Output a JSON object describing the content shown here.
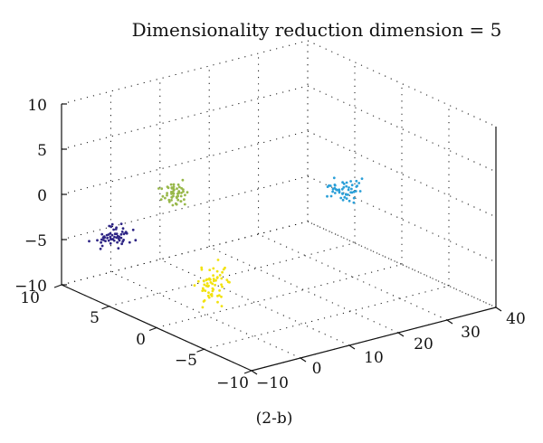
{
  "chart_data": {
    "type": "scatter3d",
    "title": "Dimensionality reduction dimension = 5",
    "caption": "(2-b)",
    "grid": true,
    "axes": {
      "x": {
        "ticks": [
          "−10",
          "0",
          "10",
          "20",
          "30",
          "40"
        ],
        "range": [
          -10,
          40
        ]
      },
      "y": {
        "ticks": [
          "−10",
          "−5",
          "0",
          "5",
          "10"
        ],
        "range": [
          -10,
          10
        ]
      },
      "z": {
        "ticks": [
          "−10",
          "−5",
          "0",
          "5",
          "10"
        ],
        "range": [
          -10,
          10
        ]
      }
    },
    "clusters": [
      {
        "color": "#2e2585",
        "center_screen_hint": "left",
        "count": 55
      },
      {
        "color": "#98b84a",
        "center_screen_hint": "upper-left",
        "count": 55
      },
      {
        "color": "#2a9fd8",
        "center_screen_hint": "right",
        "count": 50
      },
      {
        "color": "#f2e20f",
        "center_screen_hint": "bottom",
        "count": 60
      }
    ]
  }
}
